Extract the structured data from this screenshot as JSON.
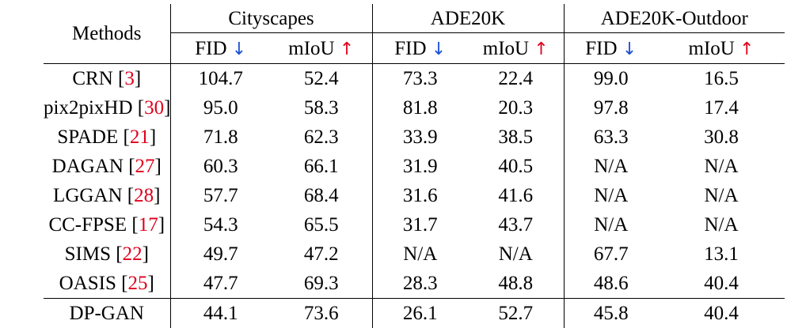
{
  "header": {
    "methods_label": "Methods",
    "groups": [
      "Cityscapes",
      "ADE20K",
      "ADE20K-Outdoor"
    ],
    "fid_label": "FID",
    "miou_label": "mIoU",
    "down_arrow": "↓",
    "up_arrow": "↑"
  },
  "rows": [
    {
      "name": "CRN",
      "cite": "3",
      "values": [
        "104.7",
        "52.4",
        "73.3",
        "22.4",
        "99.0",
        "16.5"
      ]
    },
    {
      "name": "pix2pixHD",
      "cite": "30",
      "values": [
        "95.0",
        "58.3",
        "81.8",
        "20.3",
        "97.8",
        "17.4"
      ]
    },
    {
      "name": "SPADE",
      "cite": "21",
      "values": [
        "71.8",
        "62.3",
        "33.9",
        "38.5",
        "63.3",
        "30.8"
      ]
    },
    {
      "name": "DAGAN",
      "cite": "27",
      "values": [
        "60.3",
        "66.1",
        "31.9",
        "40.5",
        "N/A",
        "N/A"
      ]
    },
    {
      "name": "LGGAN",
      "cite": "28",
      "values": [
        "57.7",
        "68.4",
        "31.6",
        "41.6",
        "N/A",
        "N/A"
      ]
    },
    {
      "name": "CC-FPSE",
      "cite": "17",
      "values": [
        "54.3",
        "65.5",
        "31.7",
        "43.7",
        "N/A",
        "N/A"
      ]
    },
    {
      "name": "SIMS",
      "cite": "22",
      "values": [
        "49.7",
        "47.2",
        "N/A",
        "N/A",
        "67.7",
        "13.1"
      ]
    },
    {
      "name": "OASIS",
      "cite": "25",
      "values": [
        "47.7",
        "69.3",
        "28.3",
        "48.8",
        "48.6",
        "40.4"
      ]
    }
  ],
  "ours": {
    "name": "DP-GAN",
    "values": [
      "44.1",
      "73.6",
      "26.1",
      "52.7",
      "45.8",
      "40.4"
    ]
  },
  "colors": {
    "cite": "#e0001b",
    "down_arrow": "#1a4fd6",
    "up_arrow": "#e0001b"
  }
}
